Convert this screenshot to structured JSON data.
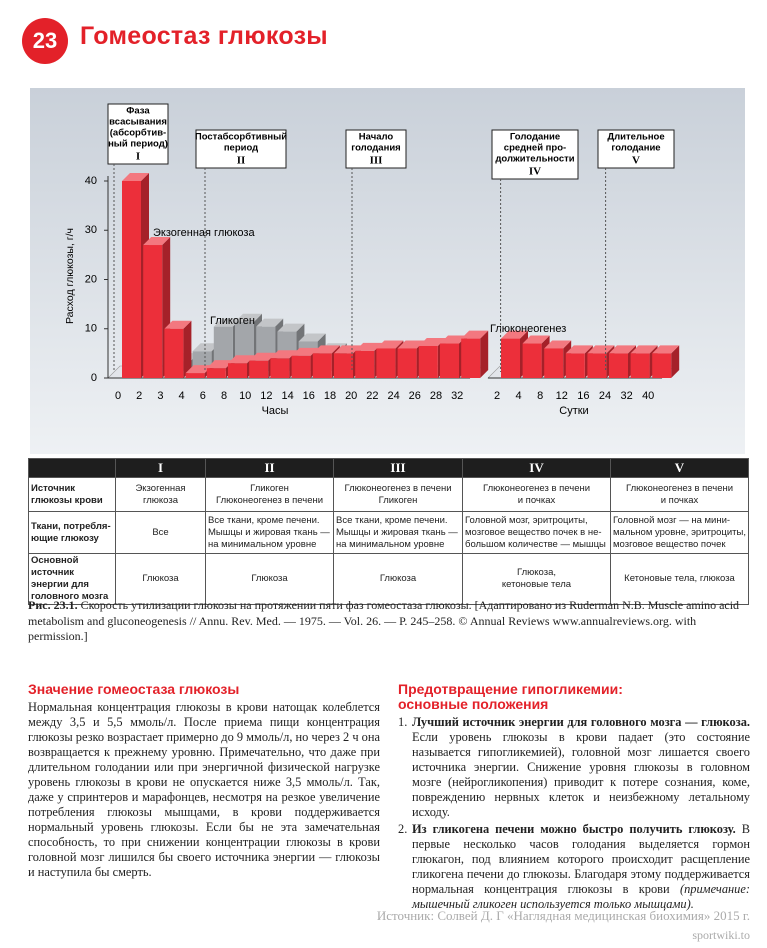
{
  "header": {
    "number": "23",
    "title": "Гомеостаз глюкозы"
  },
  "phases": [
    {
      "lines": [
        "Фаза",
        "всасывания",
        "(абсорбтив-",
        "ный период)"
      ],
      "numeral": "I"
    },
    {
      "lines": [
        "Постабсорбтивный",
        "период"
      ],
      "numeral": "II"
    },
    {
      "lines": [
        "Начало",
        "голодания"
      ],
      "numeral": "III"
    },
    {
      "lines": [
        "Голодание",
        "средней про-",
        "должительности"
      ],
      "numeral": "IV"
    },
    {
      "lines": [
        "Длительное",
        "голодание"
      ],
      "numeral": "V"
    }
  ],
  "chart_data": [
    {
      "type": "bar",
      "xlabel": "Часы",
      "ylabel": "Расход глюкозы, г/ч",
      "categories": [
        "0",
        "2",
        "3",
        "4",
        "6",
        "8",
        "10",
        "12",
        "14",
        "16",
        "18",
        "20",
        "22",
        "24",
        "26",
        "28",
        "32"
      ],
      "ylim": [
        0,
        40
      ],
      "yticks": [
        0,
        10,
        20,
        30,
        40
      ],
      "series": [
        {
          "name": "Экзогенная глюкоза",
          "color": "#ec2f3a",
          "values": [
            40,
            27,
            10,
            null,
            null,
            null,
            null,
            null,
            null,
            null,
            null,
            null,
            null,
            null,
            null,
            null,
            null
          ]
        },
        {
          "name": "Гликоген",
          "color": "#a3a6aa",
          "values": [
            null,
            null,
            2,
            4,
            9,
            10,
            9,
            8,
            6,
            4,
            2,
            null,
            null,
            null,
            null,
            null,
            null
          ]
        },
        {
          "color": "#ec2f3a",
          "values": [
            null,
            null,
            null,
            1,
            2,
            3,
            3.5,
            4,
            4.5,
            5,
            5,
            5.5,
            6,
            6,
            6.5,
            7,
            8
          ]
        }
      ]
    },
    {
      "type": "bar",
      "xlabel": "Сутки",
      "categories": [
        "2",
        "4",
        "8",
        "12",
        "16",
        "24",
        "32",
        "40"
      ],
      "series": [
        {
          "name": "Глюконеогенез",
          "color": "#ec2f3a",
          "values": [
            8,
            7,
            6,
            5,
            5,
            5,
            5,
            5
          ]
        }
      ]
    }
  ],
  "table": {
    "header": [
      "I",
      "II",
      "III",
      "IV",
      "V"
    ],
    "rows": [
      {
        "label": [
          "Источник",
          "глюкозы крови"
        ],
        "cells": [
          [
            "Экзогенная",
            "глюкоза"
          ],
          [
            "Гликоген",
            "Глюконеогенез в печени"
          ],
          [
            "Глюконеогенез в печени",
            "Гликоген"
          ],
          [
            "Глюконеогенез в печени",
            "и почках"
          ],
          [
            "Глюконеогенез в печени",
            "и почках"
          ]
        ]
      },
      {
        "label": [
          "Ткани, потребля-",
          "ющие глюкозу"
        ],
        "cells": [
          [
            "Все"
          ],
          [
            "Все ткани, кроме печени.",
            "Мышцы и жировая ткань —",
            "на минимальном уровне"
          ],
          [
            "Все ткани, кроме печени.",
            "Мышцы и жировая ткань —",
            "на минимальном уровне"
          ],
          [
            "Головной мозг, эритроциты,",
            "мозговое вещество почек в не-",
            "большом количестве — мышцы"
          ],
          [
            "Головной мозг — на мини-",
            "мальном уровне, эритроциты,",
            "мозговое вещество почек"
          ]
        ]
      },
      {
        "label": [
          "Основной источник",
          "энергии для",
          "головного мозга"
        ],
        "cells": [
          [
            "Глюкоза"
          ],
          [
            "Глюкоза"
          ],
          [
            "Глюкоза"
          ],
          [
            "Глюкоза,",
            "кетоновые тела"
          ],
          [
            "Кетоновые тела, глюкоза"
          ]
        ]
      }
    ]
  },
  "caption": {
    "label": "Рис. 23.1.",
    "text": "Скорость утилизации глюкозы на протяжении пяти фаз гомеостаза глюкозы. [Адаптировано из Ruderman N.B. Muscle amino acid metabolism and gluconeogenesis // Annu. Rev. Med. — 1975. — Vol. 26. — P. 245–258. © Annual Reviews www.annualreviews.org. with permission.]"
  },
  "left_section": {
    "heading": "Значение гомеостаза глюкозы",
    "text": "Нормальная концентрация глюкозы в крови натощак колеблется между 3,5 и 5,5 ммоль/л. После приема пищи концентрация глюкозы резко возрастает примерно до 9 ммоль/л, но через 2 ч она возвращается к прежнему уровню. Примечательно, что даже при длительном голодании или при энергичной физической нагрузке уровень глюкозы в крови не опускается ниже 3,5 ммоль/л. Так, даже у спринтеров и марафонцев, несмотря на резкое увеличение потребления глюкозы мышцами, в крови поддерживается нормальный уровень глюкозы. Если бы не эта замечательная способность, то при снижении концентрации глюкозы в крови головной мозг лишился бы своего источника энергии — глюкозы и наступила бы смерть."
  },
  "right_section": {
    "heading": [
      "Предотвращение гипогликемии:",
      "основные положения"
    ],
    "items": [
      {
        "number": "1.",
        "bold": "Лучший источник энергии для головного мозга — глюкоза.",
        "text": "Если уровень глюкозы в крови падает (это состояние называется гипогликемией), головной мозг лишается своего источника энергии. Снижение уровня глюкозы в головном мозге (нейрогликопения) приводит к потере сознания, коме, повреждению нервных клеток и неизбежному летальному исходу."
      },
      {
        "number": "2.",
        "bold": "Из гликогена печени можно быстро получить глюкозу.",
        "text": "В первые несколько часов голодания выделяется гормон глюкагон, под влиянием которого происходит расщепление гликогена печени до глюкозы. Благодаря этому поддерживается нормальная концентрация глюкозы в крови",
        "italic": "(примечание: мышечный гликоген используется только мышцами)."
      }
    ]
  },
  "source": {
    "text": "Источник: Солвей Д. Г «Наглядная медицинская биохимия» 2015 г.",
    "site": "sportwiki.to"
  }
}
